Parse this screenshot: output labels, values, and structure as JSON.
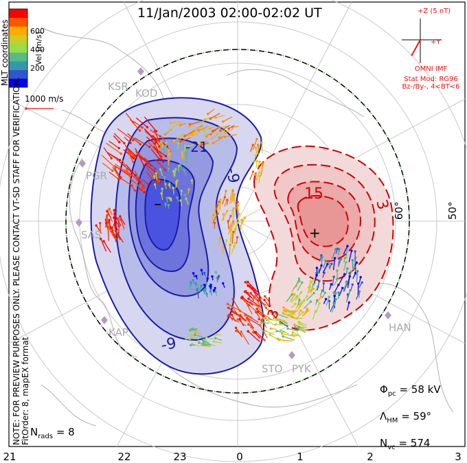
{
  "title": "11/Jan/2003 02:00-02:02 UT",
  "colorbar": {
    "label": "Vel [m/s]",
    "ticks": [
      "600",
      "400",
      "200"
    ],
    "colors": [
      "#0000ff",
      "#3355cc",
      "#3399aa",
      "#55bb88",
      "#99dd44",
      "#cccc22",
      "#ffaa00",
      "#ff5500",
      "#ff0000"
    ]
  },
  "coords_label": "MLT coordinates",
  "scale_label": "1000 m/s",
  "imf": {
    "z_label": "+Z (5 nT)",
    "y_label": "+Y",
    "source": "OMNI IMF",
    "model": "Stat Mod: RG96",
    "condition": "Bz-/By-, 4<BT<6",
    "vector": {
      "by": -1.6,
      "bz": -2.9
    }
  },
  "note": {
    "line1": "NOTE: FOR PREVIEW PURPOSES ONLY. PLEASE CONTACT VT-SD STAFF FOR VERIFICATION.",
    "line2": "FitOrder: 8, mapEX format"
  },
  "stats": {
    "phi_pc": "= 58 kV",
    "lambda_hm": "= 59°",
    "n_vc": "= 574",
    "n_rads": "= 8"
  },
  "mlt_hours": [
    "21",
    "22",
    "23",
    "0",
    "1",
    "2",
    "3"
  ],
  "latitude_labels": [
    "50°",
    "60°"
  ],
  "sites": [
    "KSR",
    "KOD",
    "PGR",
    "SAS",
    "KAP",
    "STO",
    "PYK",
    "HAN"
  ],
  "contour_labels": {
    "negative": [
      "-21",
      "-9",
      "-9"
    ],
    "positive": [
      "15",
      "3",
      "3"
    ]
  },
  "extrema_markers": {
    "minimum": "–",
    "maximum": "+"
  },
  "colors": {
    "negative": "#1a1aa8",
    "positive": "#cc0000",
    "boundary": "#44bb44",
    "grid": "#c8c8c8",
    "imf": "#ee1111"
  }
}
